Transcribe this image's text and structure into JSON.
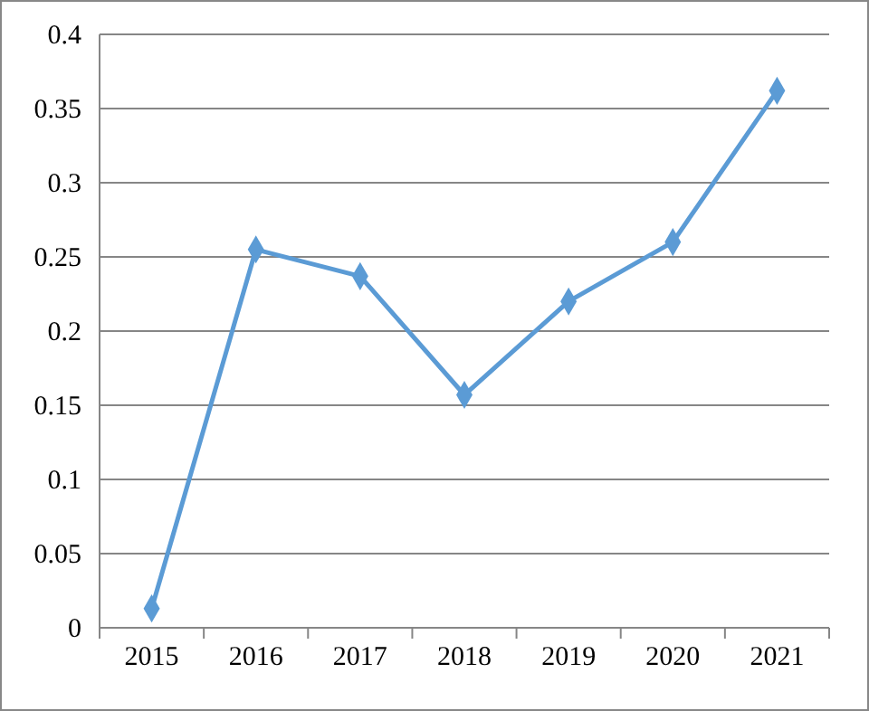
{
  "chart_data": {
    "type": "line",
    "categories": [
      "2015",
      "2016",
      "2017",
      "2018",
      "2019",
      "2020",
      "2021"
    ],
    "series": [
      {
        "color": "#5b9bd5",
        "values": [
          0.013,
          0.255,
          0.237,
          0.157,
          0.22,
          0.26,
          0.362
        ]
      }
    ],
    "ylim": [
      0,
      0.4
    ],
    "yticks": [
      0,
      0.05,
      0.1,
      0.15,
      0.2,
      0.25,
      0.3,
      0.35,
      0.4
    ],
    "grid": "y",
    "marker": "diamond",
    "line_style": "solid"
  }
}
